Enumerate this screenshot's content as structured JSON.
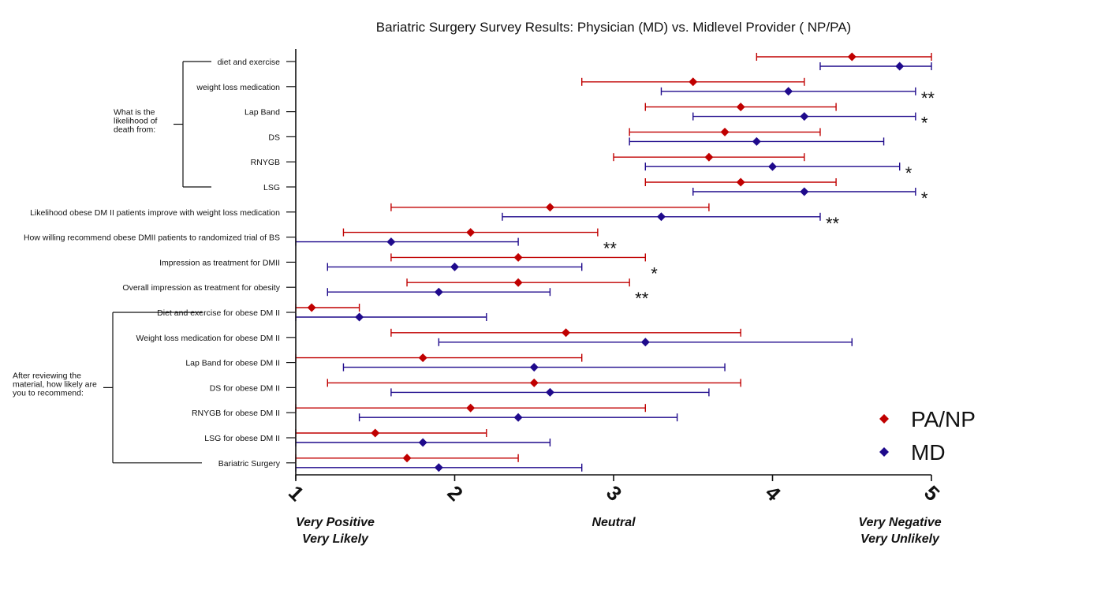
{
  "chart_data": {
    "type": "errorbar",
    "title": "Bariatric Surgery Survey  Results: Physician (MD) vs. Midlevel Provider ( NP/PA)",
    "xlim": [
      1,
      5
    ],
    "ticks": [
      "1",
      "2",
      "3",
      "4",
      "5"
    ],
    "x_captions": [
      {
        "x": 1,
        "lines": [
          "Very Positive",
          "Very  Likely"
        ]
      },
      {
        "x": 3,
        "lines": [
          "Neutral"
        ]
      },
      {
        "x": 5,
        "lines": [
          "Very Negative",
          "Very  Unlikely"
        ]
      }
    ],
    "groups": [
      {
        "lines": [
          "What is the",
          "likelihood of",
          "death from:"
        ],
        "first": 0,
        "last": 5
      },
      {
        "lines": [
          "After reviewing the",
          "material, how likely are",
          "you to recommend:"
        ],
        "first": 10,
        "last": 16
      }
    ],
    "categories": [
      "diet and exercise",
      "weight loss medication",
      "Lap Band",
      "DS",
      "RNYGB",
      "LSG",
      "Likelihood obese DM II patients improve with weight loss medication",
      "How willing recommend obese DMII patients to randomized trial of BS",
      "Impression as treatment for DMII",
      "Overall impression as treatment for obesity",
      "Diet and exercise for obese DM II",
      "Weight loss medication for obese DM II",
      "Lap Band for obese DM II",
      "DS for obese DM II",
      "RNYGB for obese DM II",
      "LSG for obese DM II",
      "Bariatric Surgery"
    ],
    "series": [
      {
        "name": "PA/NP",
        "color": "#c00000",
        "mean": [
          4.5,
          3.5,
          3.8,
          3.7,
          3.6,
          3.8,
          2.6,
          2.1,
          2.4,
          2.4,
          1.1,
          2.7,
          1.8,
          2.5,
          2.1,
          1.5,
          1.7
        ],
        "low": [
          3.9,
          2.8,
          3.2,
          3.1,
          3.0,
          3.2,
          1.6,
          1.3,
          1.6,
          1.7,
          1.0,
          1.6,
          1.0,
          1.2,
          1.0,
          1.0,
          1.0
        ],
        "high": [
          5.0,
          4.2,
          4.4,
          4.3,
          4.2,
          4.4,
          3.6,
          2.9,
          3.2,
          3.1,
          1.4,
          3.8,
          2.8,
          3.8,
          3.2,
          2.2,
          2.4
        ]
      },
      {
        "name": "MD",
        "color": "#1f0a8c",
        "mean": [
          4.8,
          4.1,
          4.2,
          3.9,
          4.0,
          4.2,
          3.3,
          1.6,
          2.0,
          1.9,
          1.4,
          3.2,
          2.5,
          2.6,
          2.4,
          1.8,
          1.9
        ],
        "low": [
          4.3,
          3.3,
          3.5,
          3.1,
          3.2,
          3.5,
          2.3,
          1.0,
          1.2,
          1.2,
          1.0,
          1.9,
          1.3,
          1.6,
          1.4,
          1.0,
          1.0
        ],
        "high": [
          5.0,
          4.9,
          4.9,
          4.7,
          4.8,
          4.9,
          4.3,
          2.4,
          2.8,
          2.6,
          2.2,
          4.5,
          3.7,
          3.6,
          3.4,
          2.6,
          2.8
        ]
      }
    ],
    "significance": [
      "",
      "**",
      "*",
      "",
      "*",
      "*",
      "**",
      "**",
      "*",
      "**",
      "",
      "",
      "",
      "",
      "",
      "",
      ""
    ],
    "legend": [
      "PA/NP",
      "MD"
    ],
    "legend_position": "bottom-right"
  }
}
